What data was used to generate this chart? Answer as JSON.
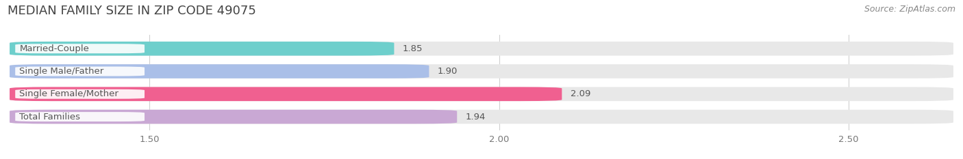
{
  "title": "MEDIAN FAMILY SIZE IN ZIP CODE 49075",
  "source": "Source: ZipAtlas.com",
  "categories": [
    "Married-Couple",
    "Single Male/Father",
    "Single Female/Mother",
    "Total Families"
  ],
  "values": [
    1.85,
    1.9,
    2.09,
    1.94
  ],
  "bar_colors": [
    "#6ecfcc",
    "#aabfe8",
    "#f06090",
    "#c9a8d4"
  ],
  "bg_bar_color": "#e8e8e8",
  "xlim_min": 1.3,
  "xlim_max": 2.65,
  "xticks": [
    1.5,
    2.0,
    2.5
  ],
  "bar_height": 0.62,
  "figure_bg": "#ffffff",
  "title_fontsize": 13,
  "source_fontsize": 9,
  "label_fontsize": 9.5,
  "value_fontsize": 9.5,
  "tick_fontsize": 9.5,
  "grid_color": "#d0d0d0",
  "text_color": "#555555",
  "label_box_color": "#ffffff"
}
